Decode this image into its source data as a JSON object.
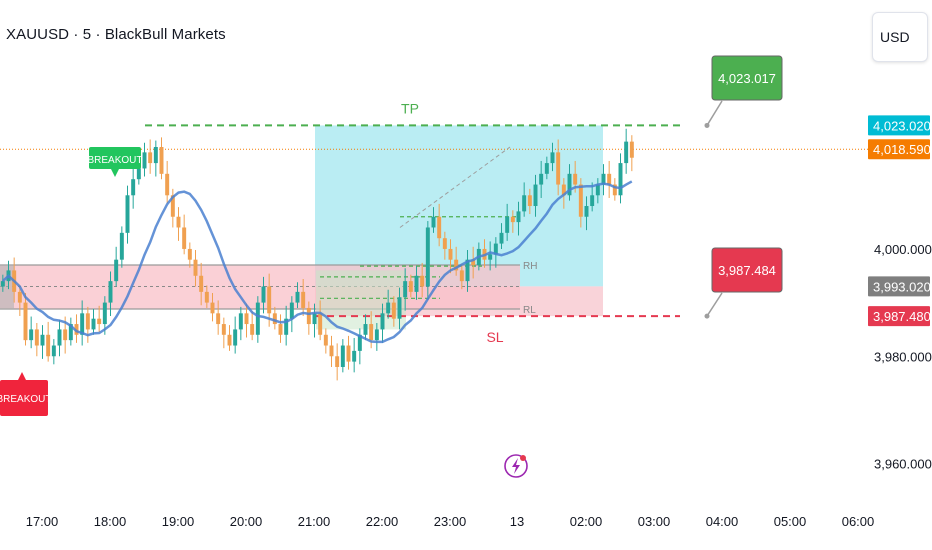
{
  "header": {
    "symbol_title": "XAUUSD · 5 · BlackBull Markets",
    "currency_button": "USD"
  },
  "chart_data": {
    "type": "candlestick",
    "symbol": "XAUUSD",
    "timeframe": "5",
    "broker": "BlackBull Markets",
    "x_ticks": [
      "17:00",
      "18:00",
      "19:00",
      "20:00",
      "21:00",
      "22:00",
      "23:00",
      "13",
      "02:00",
      "03:00",
      "04:00",
      "05:00",
      "06:00"
    ],
    "y_ticks": [
      4000.0,
      3980.0,
      3960.0
    ],
    "y_tick_labels": [
      "4,000.000",
      "3,980.000",
      "3,960.000"
    ],
    "ylim": [
      3950.6,
      4039.5
    ],
    "price_markers": [
      {
        "label": "4,023.020",
        "value": 4023.02,
        "color": "#00bcd4"
      },
      {
        "label": "4,018.590",
        "value": 4018.59,
        "color": "#f57c00"
      },
      {
        "label": "3,993.020",
        "value": 3993.02,
        "color": "#7f7f7f"
      },
      {
        "label": "3,987.480",
        "value": 3987.48,
        "color": "#e53950"
      }
    ],
    "callouts": [
      {
        "label": "4,023.017",
        "value": 4023.017,
        "color": "#4caf50"
      },
      {
        "label": "3,987.484",
        "value": 3987.484,
        "color": "#e53950"
      }
    ],
    "levels": [
      {
        "label": "TP",
        "value": 4023.02,
        "color": "#4caf50"
      },
      {
        "label": "SL",
        "value": 3987.48,
        "color": "#e53950"
      },
      {
        "label": "RH",
        "value": 3997.0,
        "color": "#888888"
      },
      {
        "label": "RL",
        "value": 3988.8,
        "color": "#888888"
      }
    ],
    "breakout_labels": [
      {
        "label": "BREAKOUT",
        "direction": "up",
        "color": "#22c55e"
      },
      {
        "label": "BREAKOUT",
        "direction": "down",
        "color": "#f0243c"
      }
    ],
    "current_price": 4018.59,
    "colors": {
      "up": "#26a69a",
      "down": "#f0a050",
      "ma": "#4a80d0",
      "position_zone": "#b2ebf2",
      "range_zone": "#f8c0c8"
    }
  }
}
